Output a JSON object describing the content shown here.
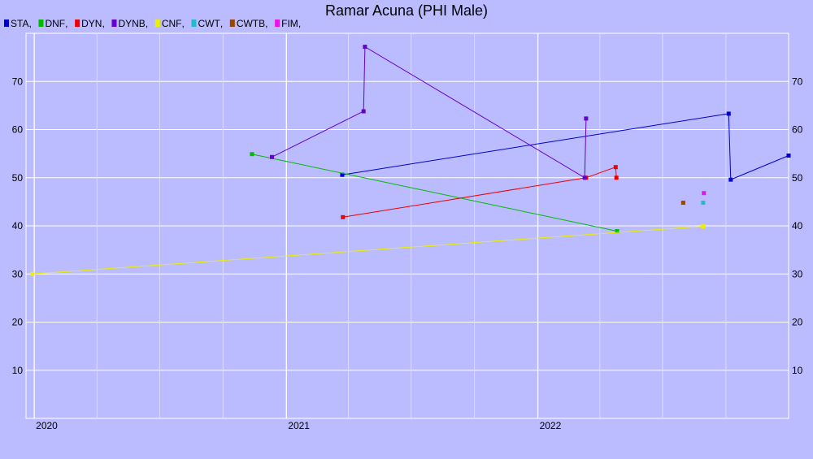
{
  "chart_data": {
    "type": "line",
    "title": "Ramar Acuna (PHI Male)",
    "xlabel": "",
    "ylabel": "",
    "x_axis_type": "date",
    "xlim": [
      "2019-12-20",
      "2022-12-31"
    ],
    "ylim": [
      0,
      80
    ],
    "y_ticks": [
      10,
      20,
      30,
      40,
      50,
      60,
      70
    ],
    "x_ticks": [
      {
        "label": "2020",
        "date": "2020-01-01",
        "major": true
      },
      {
        "label": "",
        "date": "2020-04-01",
        "major": false
      },
      {
        "label": "",
        "date": "2020-07-01",
        "major": false
      },
      {
        "label": "",
        "date": "2020-10-01",
        "major": false
      },
      {
        "label": "2021",
        "date": "2021-01-01",
        "major": true
      },
      {
        "label": "",
        "date": "2021-04-01",
        "major": false
      },
      {
        "label": "",
        "date": "2021-07-01",
        "major": false
      },
      {
        "label": "",
        "date": "2021-10-01",
        "major": false
      },
      {
        "label": "2022",
        "date": "2022-01-01",
        "major": true
      },
      {
        "label": "",
        "date": "2022-04-01",
        "major": false
      },
      {
        "label": "",
        "date": "2022-07-01",
        "major": false
      },
      {
        "label": "",
        "date": "2022-10-01",
        "major": false
      }
    ],
    "grid": true,
    "legend_position": "top-left",
    "series": [
      {
        "name": "STA",
        "color": "#0000cc",
        "points": [
          {
            "x": "2021-03-23",
            "y": 50.6
          },
          {
            "x": "2022-10-05",
            "y": 63.3
          },
          {
            "x": "2022-10-08",
            "y": 49.6
          },
          {
            "x": "2022-12-31",
            "y": 54.6
          }
        ]
      },
      {
        "name": "DNF",
        "color": "#00bb00",
        "points": [
          {
            "x": "2020-11-12",
            "y": 54.9
          },
          {
            "x": "2022-04-26",
            "y": 38.9
          }
        ]
      },
      {
        "name": "DYN",
        "color": "#ee0000",
        "points": [
          {
            "x": "2021-03-24",
            "y": 41.8
          },
          {
            "x": "2022-03-12",
            "y": 50.0
          },
          {
            "x": "2022-04-24",
            "y": 52.2
          },
          {
            "x": "2022-04-25",
            "y": 50.0
          }
        ]
      },
      {
        "name": "DYNB",
        "color": "#6600cc",
        "points": [
          {
            "x": "2020-12-11",
            "y": 54.3
          },
          {
            "x": "2021-04-23",
            "y": 63.8
          },
          {
            "x": "2021-04-25",
            "y": 77.2
          },
          {
            "x": "2022-03-10",
            "y": 50.0
          },
          {
            "x": "2022-03-12",
            "y": 62.3
          }
        ]
      },
      {
        "name": "CNF",
        "color": "#eeee00",
        "points": [
          {
            "x": "2019-12-29",
            "y": 30.0
          },
          {
            "x": "2022-08-29",
            "y": 39.9
          }
        ]
      },
      {
        "name": "CWT",
        "color": "#22bbcc",
        "points": [
          {
            "x": "2022-08-29",
            "y": 44.8
          }
        ]
      },
      {
        "name": "CWTB",
        "color": "#994400",
        "points": [
          {
            "x": "2022-07-31",
            "y": 44.8
          }
        ]
      },
      {
        "name": "FIM",
        "color": "#ee11ee",
        "points": [
          {
            "x": "2022-08-30",
            "y": 46.8
          }
        ]
      }
    ]
  }
}
